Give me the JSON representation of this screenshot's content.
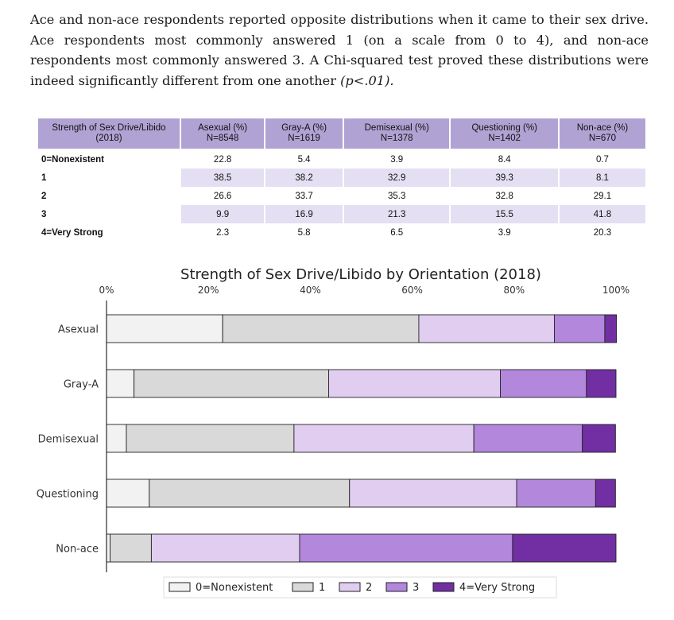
{
  "paragraph": {
    "text": "Ace and non-ace respondents reported opposite distributions when it came to their sex drive. Ace respondents most commonly answered 1 (on a scale from 0 to 4), and non-ace respondents most commonly answered 3. A Chi-squared test proved these distributions were indeed significantly different from one another ",
    "pvalue": "(p<.01)."
  },
  "table": {
    "header_col0_line1": "Strength of Sex Drive/Libido",
    "header_col0_line2": "(2018)",
    "columns": [
      {
        "name": "Asexual (%)",
        "n": "N=8548"
      },
      {
        "name": "Gray-A (%)",
        "n": "N=1619"
      },
      {
        "name": "Demisexual (%)",
        "n": "N=1378"
      },
      {
        "name": "Questioning (%)",
        "n": "N=1402"
      },
      {
        "name": "Non-ace (%)",
        "n": "N=670"
      }
    ],
    "rows": [
      {
        "label": "0=Nonexistent",
        "cells": [
          "22.8",
          "5.4",
          "3.9",
          "8.4",
          "0.7"
        ]
      },
      {
        "label": "1",
        "cells": [
          "38.5",
          "38.2",
          "32.9",
          "39.3",
          "8.1"
        ]
      },
      {
        "label": "2",
        "cells": [
          "26.6",
          "33.7",
          "35.3",
          "32.8",
          "29.1"
        ]
      },
      {
        "label": "3",
        "cells": [
          "9.9",
          "16.9",
          "21.3",
          "15.5",
          "41.8"
        ]
      },
      {
        "label": "4=Very Strong",
        "cells": [
          "2.3",
          "5.8",
          "6.5",
          "3.9",
          "20.3"
        ]
      }
    ]
  },
  "chart_data": {
    "type": "bar",
    "stacked": true,
    "orientation": "horizontal",
    "title": "Strength of Sex Drive/Libido by Orientation (2018)",
    "categories": [
      "Asexual",
      "Gray-A",
      "Demisexual",
      "Questioning",
      "Non-ace"
    ],
    "xlim": [
      0,
      100
    ],
    "xticks": [
      "0%",
      "20%",
      "40%",
      "60%",
      "80%",
      "100%"
    ],
    "series": [
      {
        "name": "0=Nonexistent",
        "color": "#f2f2f2",
        "values": [
          22.8,
          5.4,
          3.9,
          8.4,
          0.7
        ]
      },
      {
        "name": "1",
        "color": "#d9d9d9",
        "values": [
          38.5,
          38.2,
          32.9,
          39.3,
          8.1
        ]
      },
      {
        "name": "2",
        "color": "#e0cdf0",
        "values": [
          26.6,
          33.7,
          35.3,
          32.8,
          29.1
        ]
      },
      {
        "name": "3",
        "color": "#b287dc",
        "values": [
          9.9,
          16.9,
          21.3,
          15.5,
          41.8
        ]
      },
      {
        "name": "4=Very Strong",
        "color": "#722fa3",
        "values": [
          2.3,
          5.8,
          6.5,
          3.9,
          20.3
        ]
      }
    ],
    "legend_position": "bottom"
  }
}
